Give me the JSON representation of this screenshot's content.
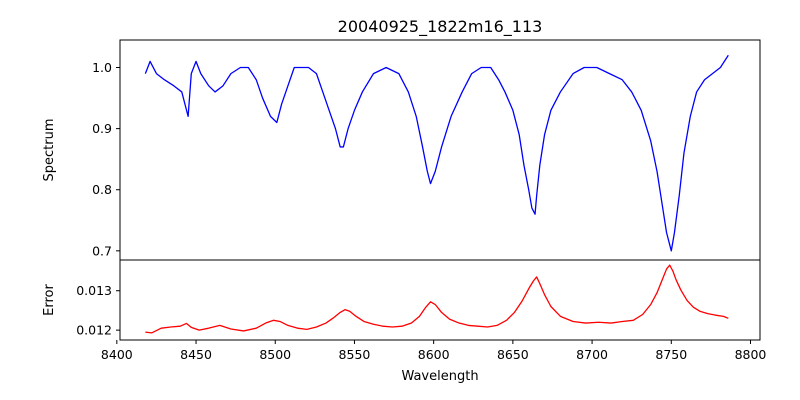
{
  "chart_data": {
    "type": "line",
    "title": "20040925_1822m16_113",
    "xlabel": "Wavelength",
    "xlim": [
      8402,
      8806
    ],
    "xticks": [
      8400,
      8450,
      8500,
      8550,
      8600,
      8650,
      8700,
      8750,
      8800
    ],
    "grid": false,
    "panels": [
      {
        "name": "spectrum",
        "ylabel": "Spectrum",
        "ylim": [
          0.685,
          1.045
        ],
        "yticks": [
          0.7,
          0.8,
          0.9,
          1.0
        ],
        "ytick_labels": [
          "0.7",
          "0.8",
          "0.9",
          "1.0"
        ],
        "color": "#0000ff",
        "x": [
          8418,
          8421,
          8425,
          8430,
          8436,
          8441,
          8445,
          8447,
          8450,
          8453,
          8458,
          8462,
          8467,
          8472,
          8478,
          8483,
          8488,
          8492,
          8497,
          8501,
          8504,
          8508,
          8512,
          8517,
          8521,
          8526,
          8530,
          8534,
          8538,
          8541,
          8543,
          8546,
          8550,
          8555,
          8562,
          8570,
          8578,
          8584,
          8589,
          8593,
          8596,
          8598,
          8601,
          8605,
          8611,
          8618,
          8624,
          8630,
          8636,
          8641,
          8645,
          8650,
          8654,
          8657,
          8660,
          8662,
          8664,
          8665,
          8667,
          8670,
          8674,
          8680,
          8688,
          8695,
          8703,
          8711,
          8719,
          8725,
          8731,
          8737,
          8741,
          8744,
          8747,
          8749,
          8750,
          8752,
          8755,
          8758,
          8762,
          8766,
          8771,
          8776,
          8781,
          8786
        ],
        "values": [
          0.99,
          1.01,
          0.99,
          0.98,
          0.97,
          0.96,
          0.92,
          0.99,
          1.01,
          0.99,
          0.97,
          0.96,
          0.97,
          0.99,
          1.0,
          1.0,
          0.98,
          0.95,
          0.92,
          0.91,
          0.94,
          0.97,
          1.0,
          1.0,
          1.0,
          0.99,
          0.96,
          0.93,
          0.9,
          0.87,
          0.87,
          0.9,
          0.93,
          0.96,
          0.99,
          1.0,
          0.99,
          0.96,
          0.92,
          0.87,
          0.83,
          0.81,
          0.83,
          0.87,
          0.92,
          0.96,
          0.99,
          1.0,
          1.0,
          0.98,
          0.96,
          0.93,
          0.89,
          0.84,
          0.8,
          0.77,
          0.76,
          0.79,
          0.84,
          0.89,
          0.93,
          0.96,
          0.99,
          1.0,
          1.0,
          0.99,
          0.98,
          0.96,
          0.93,
          0.88,
          0.83,
          0.78,
          0.73,
          0.71,
          0.7,
          0.73,
          0.79,
          0.86,
          0.92,
          0.96,
          0.98,
          0.99,
          1.0,
          1.02
        ]
      },
      {
        "name": "error",
        "ylabel": "Error",
        "ylim": [
          0.01175,
          0.01378
        ],
        "yticks": [
          0.012,
          0.013
        ],
        "ytick_labels": [
          "0.012",
          "0.013"
        ],
        "color": "#ff0000",
        "x": [
          8418,
          8422,
          8428,
          8434,
          8440,
          8444,
          8447,
          8452,
          8458,
          8465,
          8472,
          8480,
          8488,
          8494,
          8499,
          8503,
          8508,
          8514,
          8520,
          8526,
          8532,
          8537,
          8541,
          8544,
          8547,
          8551,
          8556,
          8562,
          8568,
          8574,
          8580,
          8586,
          8591,
          8595,
          8598,
          8601,
          8605,
          8610,
          8616,
          8622,
          8628,
          8634,
          8640,
          8646,
          8651,
          8656,
          8660,
          8663,
          8665,
          8667,
          8670,
          8674,
          8680,
          8688,
          8696,
          8704,
          8712,
          8719,
          8726,
          8732,
          8737,
          8741,
          8744,
          8747,
          8749,
          8751,
          8753,
          8756,
          8760,
          8764,
          8768,
          8773,
          8778,
          8783,
          8786
        ],
        "values": [
          0.01195,
          0.01193,
          0.01205,
          0.01208,
          0.0121,
          0.01217,
          0.01207,
          0.012,
          0.01205,
          0.01212,
          0.01203,
          0.01198,
          0.01205,
          0.01218,
          0.01225,
          0.01222,
          0.01212,
          0.01205,
          0.01202,
          0.01208,
          0.01218,
          0.01232,
          0.01245,
          0.01252,
          0.01248,
          0.01235,
          0.01222,
          0.01215,
          0.0121,
          0.01208,
          0.0121,
          0.01218,
          0.01235,
          0.01258,
          0.01272,
          0.01265,
          0.01245,
          0.01228,
          0.01218,
          0.01212,
          0.0121,
          0.01208,
          0.01212,
          0.01225,
          0.01245,
          0.01275,
          0.01305,
          0.01325,
          0.01335,
          0.01318,
          0.0129,
          0.0126,
          0.01235,
          0.01222,
          0.01218,
          0.0122,
          0.01218,
          0.01222,
          0.01225,
          0.0124,
          0.01265,
          0.01295,
          0.01325,
          0.01355,
          0.01365,
          0.0135,
          0.01328,
          0.01302,
          0.01275,
          0.01258,
          0.01248,
          0.01242,
          0.01238,
          0.01235,
          0.0123
        ]
      }
    ]
  }
}
